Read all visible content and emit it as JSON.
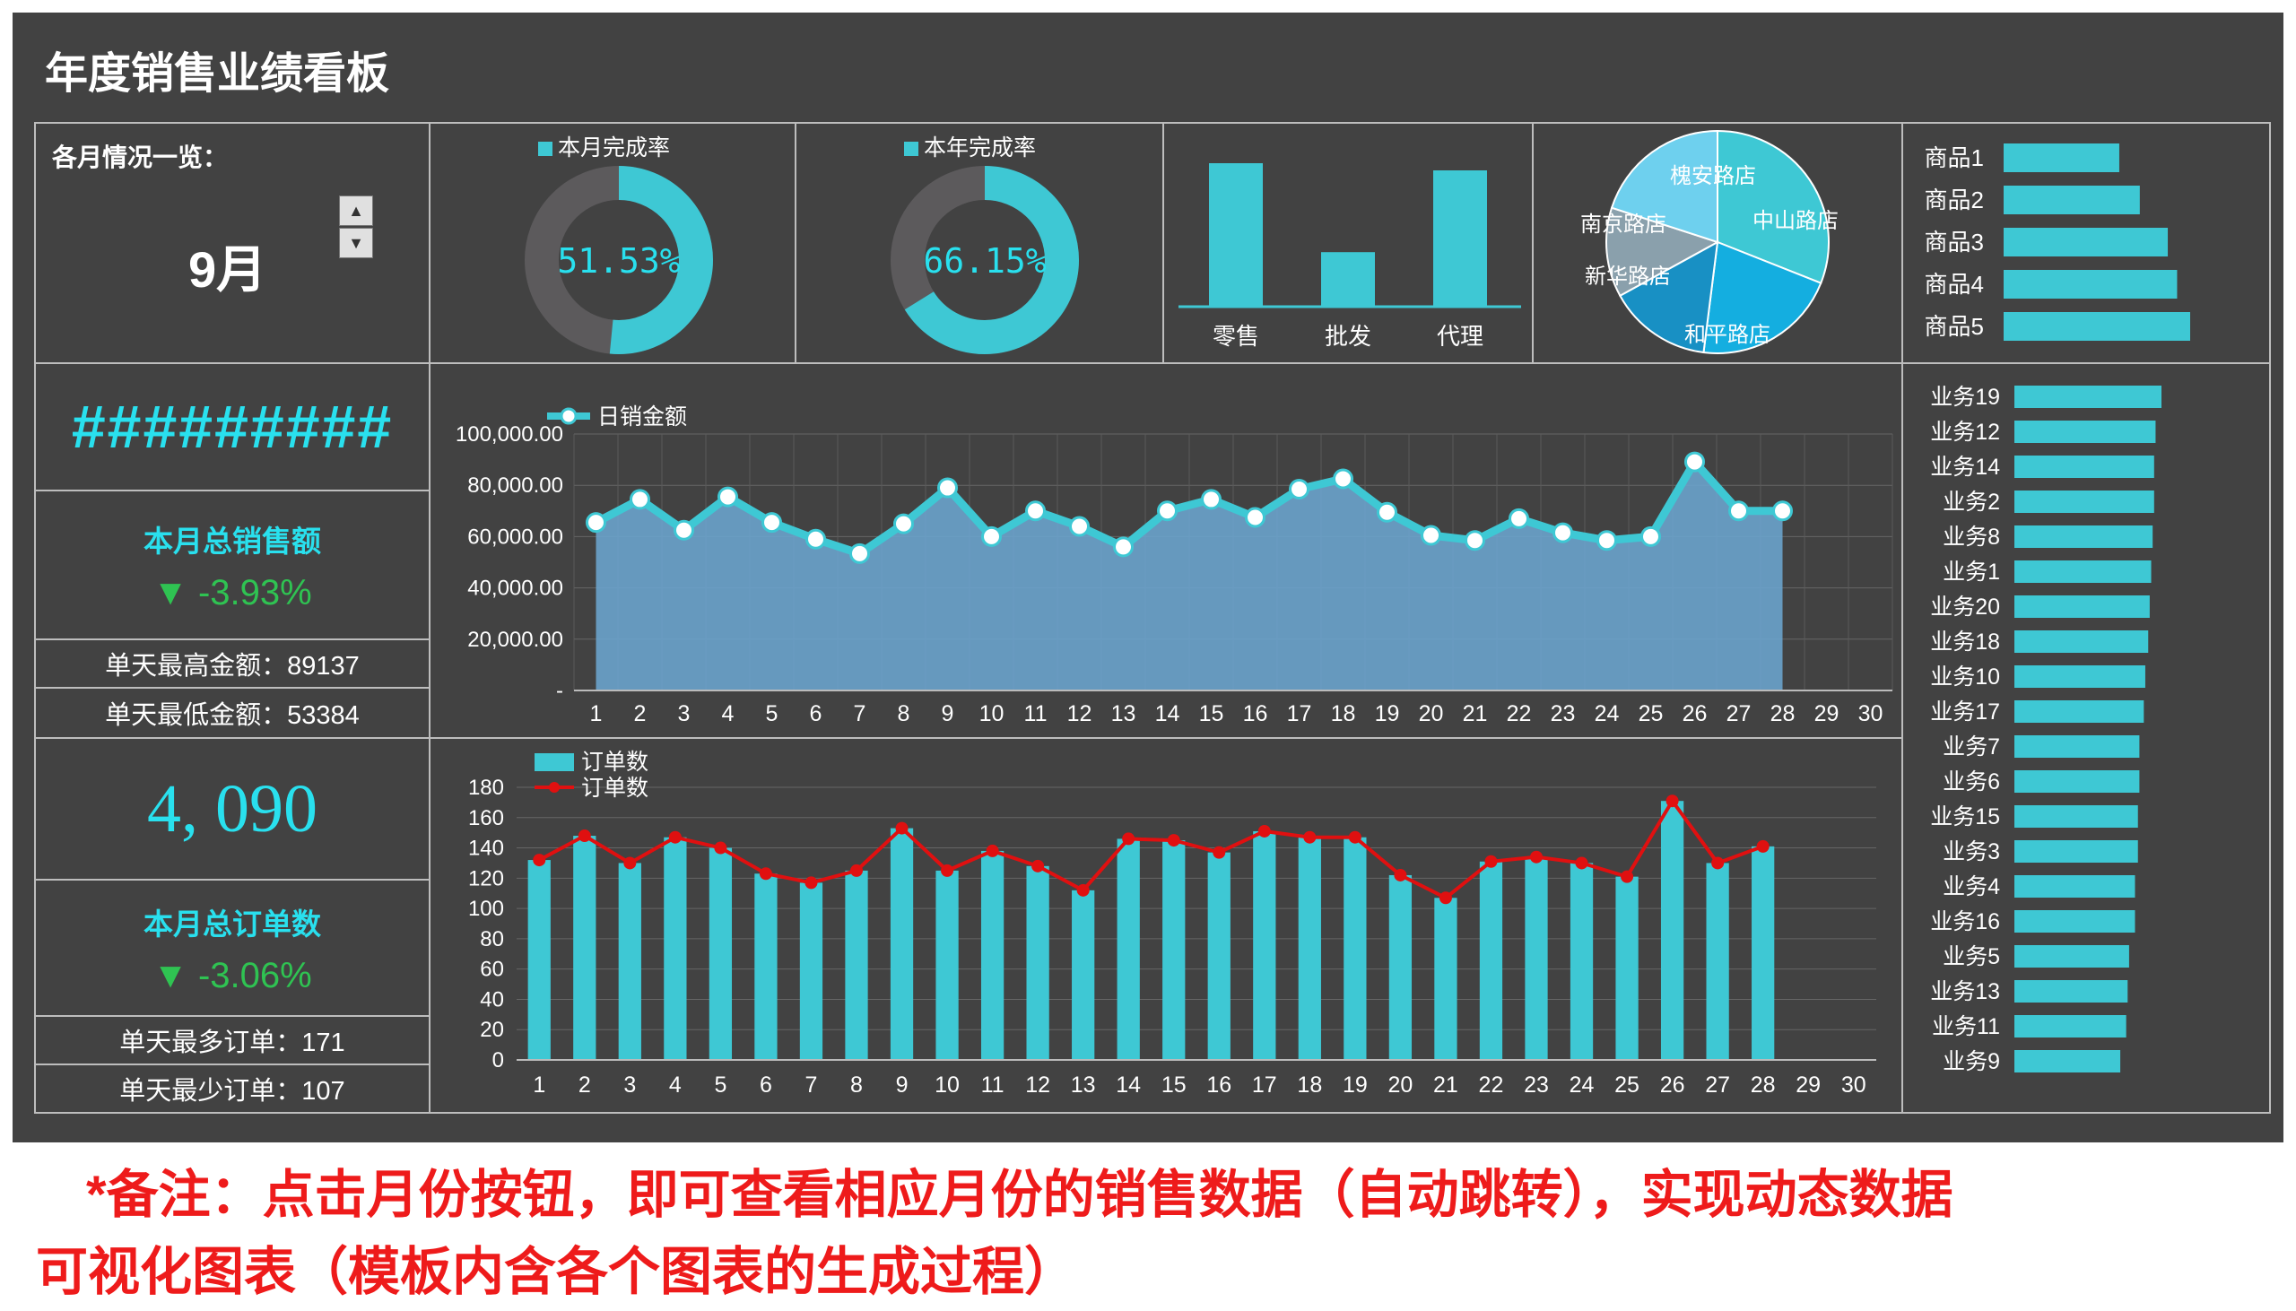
{
  "title": "年度销售业绩看板",
  "month_panel": {
    "label": "各月情况一览：",
    "value": "9月",
    "up_icon": "up-arrow",
    "down_icon": "down-arrow"
  },
  "sales_panel": {
    "hash_value": "#########",
    "title": "本月总销售额",
    "change": "▼  -3.93%",
    "max_label": "单天最高金额：89137",
    "min_label": "单天最低金额：53384"
  },
  "orders_panel": {
    "total": "4, 090",
    "title": "本月总订单数",
    "change": "▼  -3.06%",
    "max_label": "单天最多订单：171",
    "min_label": "单天最少订单：107"
  },
  "footnote": {
    "line1": "*备注：点击月份按钮，即可查看相应月份的销售数据（自动跳转），实现动态数据",
    "line2": "可视化图表（模板内含各个图表的生成过程）"
  },
  "colors": {
    "background": "#424242",
    "cyan": "#3ec8d4",
    "cyan_text": "#29e0ee",
    "donut_rest": "#5c5a5c",
    "area": "#6aa3cc",
    "red": "#e01010",
    "green": "#2fc352"
  },
  "chart_data": [
    {
      "type": "pie",
      "id": "month_rate",
      "legend": "本月完成率",
      "value_label": "51.53%",
      "values": [
        51.53,
        48.47
      ]
    },
    {
      "type": "pie",
      "id": "year_rate",
      "legend": "本年完成率",
      "value_label": "66.15%",
      "values": [
        66.15,
        33.85
      ]
    },
    {
      "type": "bar",
      "id": "channel",
      "categories": [
        "零售",
        "批发",
        "代理"
      ],
      "values": [
        100,
        38,
        95
      ]
    },
    {
      "type": "pie",
      "id": "stores",
      "categories": [
        "中山路店",
        "和平路店",
        "新华路店",
        "南京路店",
        "槐安路店"
      ],
      "values": [
        31,
        21,
        15,
        13,
        20
      ],
      "colors": [
        "#3ec8d4",
        "#14aee0",
        "#1890c4",
        "#8aa0ac",
        "#6ed0ee"
      ]
    },
    {
      "type": "bar",
      "id": "products",
      "orientation": "horizontal",
      "categories": [
        "商品1",
        "商品2",
        "商品3",
        "商品4",
        "商品5"
      ],
      "values": [
        62,
        73,
        88,
        93,
        100
      ]
    },
    {
      "type": "area",
      "id": "daily_sales",
      "legend": "日销金额",
      "x": [
        "1",
        "2",
        "3",
        "4",
        "5",
        "6",
        "7",
        "8",
        "9",
        "10",
        "11",
        "12",
        "13",
        "14",
        "15",
        "16",
        "17",
        "18",
        "19",
        "20",
        "21",
        "22",
        "23",
        "24",
        "25",
        "26",
        "27",
        "28",
        "29",
        "30"
      ],
      "values": [
        65500,
        74500,
        62500,
        75500,
        65500,
        59000,
        53384,
        65000,
        79000,
        60000,
        70000,
        64000,
        56000,
        70000,
        74500,
        67500,
        78500,
        82500,
        69500,
        60500,
        58500,
        67000,
        61500,
        58500,
        60000,
        89137,
        70000,
        70000,
        null,
        null
      ],
      "y_ticks": [
        "-",
        "20,000.00",
        "40,000.00",
        "60,000.00",
        "80,000.00",
        "100,000.00"
      ],
      "ylim": [
        0,
        100000
      ]
    },
    {
      "type": "bar",
      "id": "daily_orders",
      "x": [
        "1",
        "2",
        "3",
        "4",
        "5",
        "6",
        "7",
        "8",
        "9",
        "10",
        "11",
        "12",
        "13",
        "14",
        "15",
        "16",
        "17",
        "18",
        "19",
        "20",
        "21",
        "22",
        "23",
        "24",
        "25",
        "26",
        "27",
        "28",
        "29",
        "30"
      ],
      "series": [
        {
          "name": "订单数",
          "type": "bar",
          "values": [
            132,
            148,
            130,
            147,
            140,
            123,
            117,
            125,
            153,
            125,
            138,
            128,
            112,
            146,
            145,
            137,
            151,
            147,
            147,
            122,
            107,
            131,
            134,
            130,
            121,
            171,
            130,
            141,
            null,
            null
          ]
        },
        {
          "name": "订单数",
          "type": "line",
          "values": [
            132,
            148,
            130,
            147,
            140,
            123,
            117,
            125,
            153,
            125,
            138,
            128,
            112,
            146,
            145,
            137,
            151,
            147,
            147,
            122,
            107,
            131,
            134,
            130,
            121,
            171,
            130,
            141,
            null,
            null
          ]
        }
      ],
      "y_ticks": [
        "0",
        "20",
        "40",
        "60",
        "80",
        "100",
        "120",
        "140",
        "160",
        "180"
      ],
      "ylim": [
        0,
        180
      ]
    },
    {
      "type": "bar",
      "id": "staff",
      "orientation": "horizontal",
      "categories": [
        "业务19",
        "业务12",
        "业务14",
        "业务2",
        "业务8",
        "业务1",
        "业务20",
        "业务18",
        "业务10",
        "业务17",
        "业务7",
        "业务6",
        "业务15",
        "业务3",
        "业务4",
        "业务16",
        "业务5",
        "业务13",
        "业务11",
        "业务9"
      ],
      "values": [
        100,
        96,
        95,
        95,
        94,
        93,
        92,
        91,
        89,
        88,
        85,
        85,
        84,
        84,
        82,
        82,
        78,
        77,
        76,
        72
      ]
    }
  ]
}
